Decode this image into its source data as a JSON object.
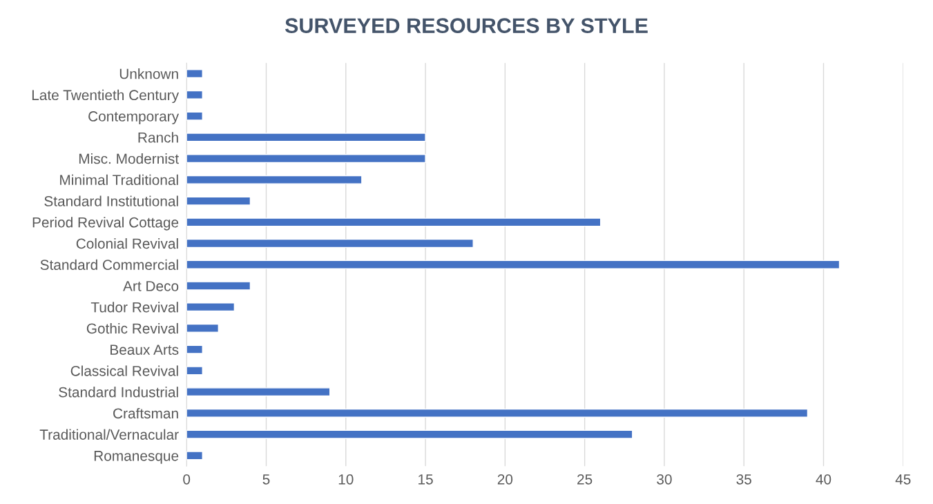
{
  "chart_data": {
    "type": "bar",
    "orientation": "horizontal",
    "title": "SURVEYED RESOURCES BY STYLE",
    "categories": [
      "Unknown",
      "Late Twentieth Century",
      "Contemporary",
      "Ranch",
      "Misc. Modernist",
      "Minimal Traditional",
      "Standard Institutional",
      "Period Revival Cottage",
      "Colonial Revival",
      "Standard Commercial",
      "Art Deco",
      "Tudor Revival",
      "Gothic Revival",
      "Beaux Arts",
      "Classical Revival",
      "Standard Industrial",
      "Craftsman",
      "Traditional/Vernacular",
      "Romanesque"
    ],
    "values": [
      1,
      1,
      1,
      15,
      15,
      11,
      4,
      26,
      18,
      41,
      4,
      3,
      2,
      1,
      1,
      9,
      39,
      28,
      1
    ],
    "color": "#4472c4",
    "xlim": [
      0,
      45
    ],
    "xticks": [
      0,
      5,
      10,
      15,
      20,
      25,
      30,
      35,
      40,
      45
    ],
    "grid": "x",
    "legend": false
  }
}
